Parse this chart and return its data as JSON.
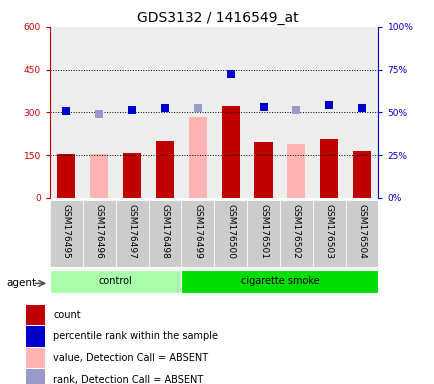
{
  "title": "GDS3132 / 1416549_at",
  "samples": [
    "GSM176495",
    "GSM176496",
    "GSM176497",
    "GSM176498",
    "GSM176499",
    "GSM176500",
    "GSM176501",
    "GSM176502",
    "GSM176503",
    "GSM176504"
  ],
  "count_values": [
    152,
    null,
    158,
    198,
    null,
    322,
    195,
    null,
    205,
    165
  ],
  "absent_bar_values": [
    null,
    152,
    null,
    null,
    285,
    null,
    null,
    190,
    null,
    null
  ],
  "percentile_rank": [
    304,
    null,
    307,
    315,
    null,
    435,
    318,
    null,
    325,
    315
  ],
  "absent_rank_values": [
    null,
    295,
    null,
    null,
    316,
    null,
    null,
    307,
    null,
    null
  ],
  "bar_color_count": "#c00000",
  "bar_color_absent": "#ffb3b3",
  "dot_color_rank": "#0000cc",
  "dot_color_absent_rank": "#9999cc",
  "left_ylim": [
    0,
    600
  ],
  "right_ylim": [
    0,
    100
  ],
  "left_yticks": [
    0,
    150,
    300,
    450,
    600
  ],
  "right_yticks": [
    0,
    25,
    50,
    75,
    100
  ],
  "left_ytick_labels": [
    "0",
    "150",
    "300",
    "450",
    "600"
  ],
  "right_ytick_labels": [
    "0%",
    "25%",
    "50%",
    "75%",
    "100%"
  ],
  "grid_lines": [
    150,
    300,
    450
  ],
  "groups": [
    {
      "label": "control",
      "indices": [
        0,
        1,
        2,
        3
      ],
      "color": "#aaffaa"
    },
    {
      "label": "cigarette smoke",
      "indices": [
        4,
        5,
        6,
        7,
        8,
        9
      ],
      "color": "#00dd00"
    }
  ],
  "agent_label": "agent",
  "legend_items": [
    {
      "color": "#c00000",
      "label": "count"
    },
    {
      "color": "#0000cc",
      "label": "percentile rank within the sample"
    },
    {
      "color": "#ffb3b3",
      "label": "value, Detection Call = ABSENT"
    },
    {
      "color": "#9999cc",
      "label": "rank, Detection Call = ABSENT"
    }
  ],
  "title_fontsize": 10,
  "tick_fontsize": 6.5,
  "legend_fontsize": 7,
  "bar_width": 0.55,
  "dot_size": 28,
  "left_axis_color": "#cc0000",
  "right_axis_color": "#0000cc",
  "col_bg_color": "#cccccc"
}
